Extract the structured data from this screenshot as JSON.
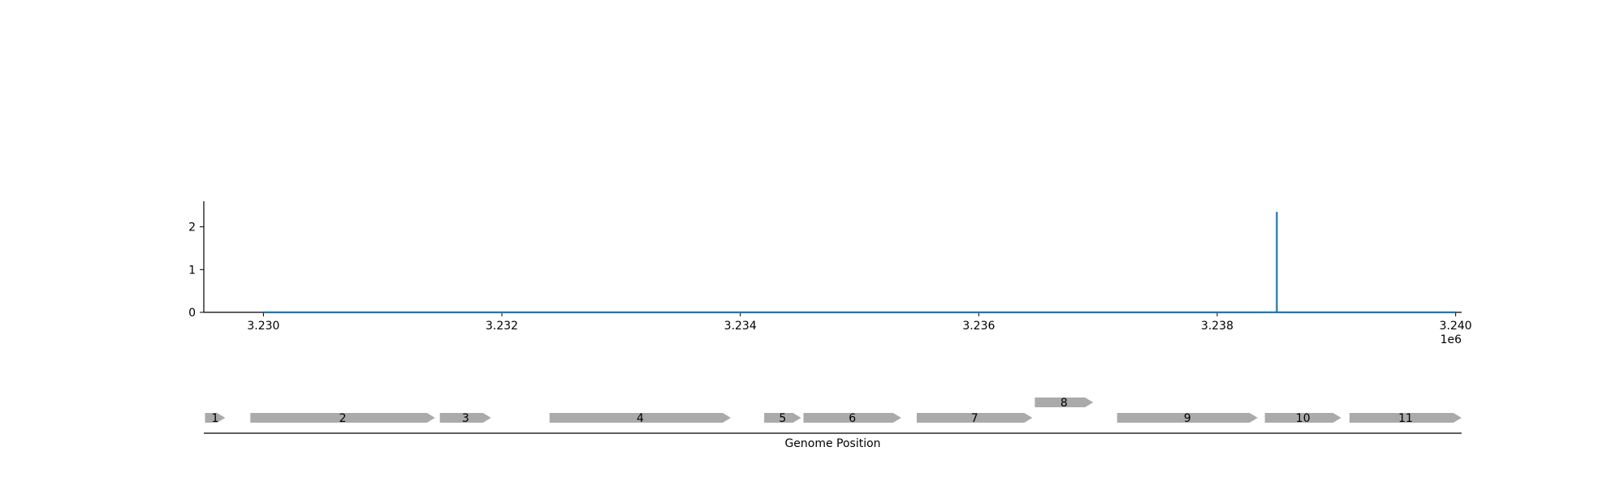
{
  "chart_data": [
    {
      "type": "line",
      "title": "",
      "xlabel": "",
      "ylabel": "",
      "x_offset_label": "1e6",
      "xlim": [
        3.2295,
        3.24005
      ],
      "ylim": [
        0,
        2.6
      ],
      "x_ticks": [
        3.23,
        3.232,
        3.234,
        3.236,
        3.238,
        3.24
      ],
      "x_tick_labels": [
        "3.230",
        "3.232",
        "3.234",
        "3.236",
        "3.238",
        "3.240"
      ],
      "y_ticks": [
        0,
        1,
        2
      ],
      "y_tick_labels": [
        "0",
        "1",
        "2"
      ],
      "grid": false,
      "series": [
        {
          "color": "#1f77b4",
          "x": [
            3.23,
            3.2385,
            3.2385,
            3.2385,
            3.2385,
            3.24
          ],
          "y": [
            0,
            0,
            0,
            2.35,
            0,
            0
          ]
        }
      ]
    },
    {
      "type": "gene-track",
      "xlabel": "Genome Position",
      "gene_color": "#aaaaaa",
      "xlim": [
        3.2295,
        3.24005
      ],
      "genes": [
        {
          "label": "1",
          "start": 3.22951,
          "end": 3.22968,
          "strand": "+",
          "row": 0
        },
        {
          "label": "2",
          "start": 3.22989,
          "end": 3.23144,
          "strand": "+",
          "row": 0
        },
        {
          "label": "3",
          "start": 3.23148,
          "end": 3.23191,
          "strand": "+",
          "row": 0
        },
        {
          "label": "4",
          "start": 3.2324,
          "end": 3.23392,
          "strand": "+",
          "row": 0
        },
        {
          "label": "5",
          "start": 3.2342,
          "end": 3.23451,
          "strand": "+",
          "row": 0
        },
        {
          "label": "6",
          "start": 3.23453,
          "end": 3.23535,
          "strand": "+",
          "row": 0
        },
        {
          "label": "7",
          "start": 3.23548,
          "end": 3.23645,
          "strand": "+",
          "row": 0
        },
        {
          "label": "8",
          "start": 3.23647,
          "end": 3.23696,
          "strand": "+",
          "row": 1
        },
        {
          "label": "9",
          "start": 3.23716,
          "end": 3.23834,
          "strand": "+",
          "row": 0
        },
        {
          "label": "10",
          "start": 3.2384,
          "end": 3.23904,
          "strand": "+",
          "row": 0
        },
        {
          "label": "11",
          "start": 3.23911,
          "end": 3.2405,
          "strand": "+",
          "row": 0
        }
      ]
    }
  ]
}
